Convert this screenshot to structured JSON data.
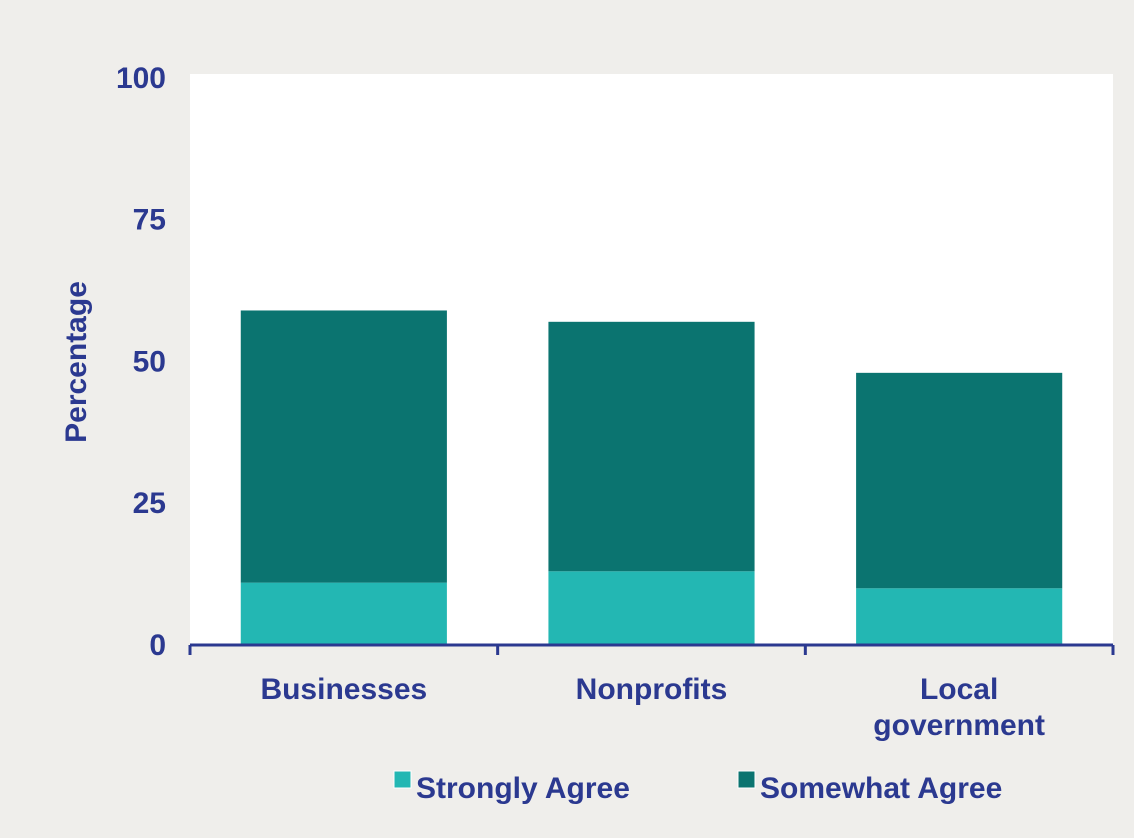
{
  "chart_data": {
    "type": "stacked_bar",
    "y_label": "Percentage",
    "categories": [
      "Businesses",
      "Nonprofits",
      "Local government"
    ],
    "series": [
      {
        "name": "Strongly Agree",
        "color": "#23b7b3",
        "values": [
          11,
          13,
          10
        ]
      },
      {
        "name": "Somewhat Agree",
        "color": "#0b7470",
        "values": [
          48,
          44,
          38
        ]
      }
    ],
    "ylim": [
      0,
      100
    ],
    "yticks": [
      0,
      25,
      50,
      75,
      100
    ],
    "grid": false,
    "legend": "bottom"
  }
}
